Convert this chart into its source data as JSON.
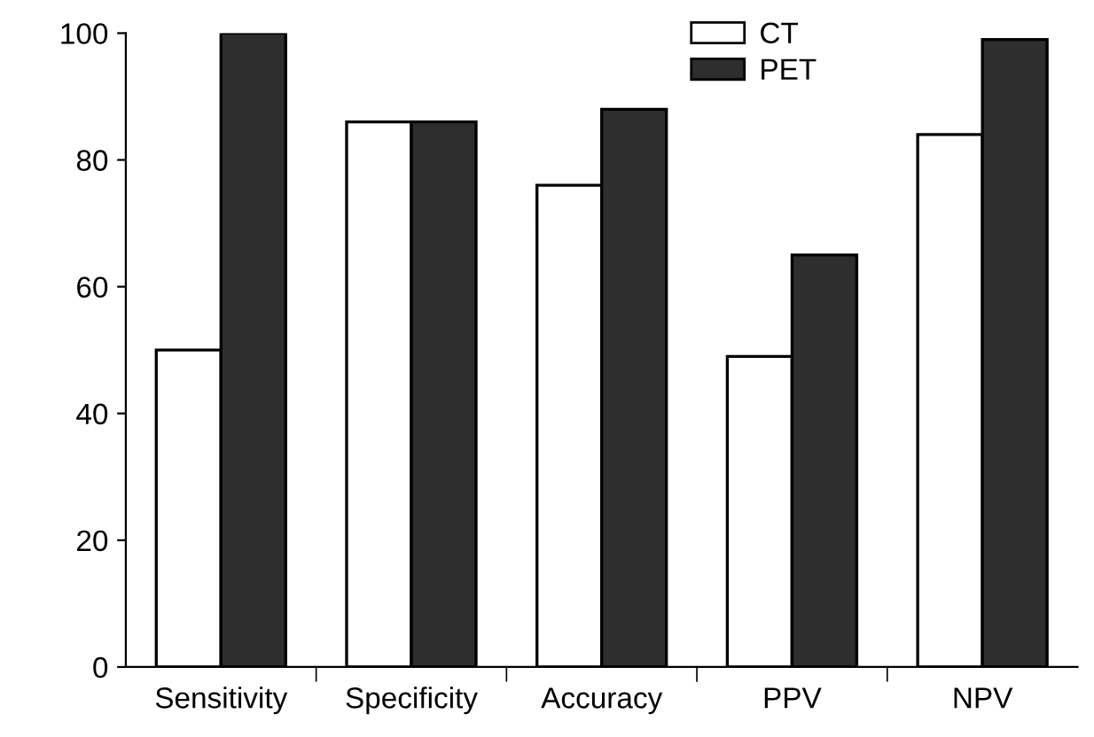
{
  "chart_data": {
    "type": "bar",
    "categories": [
      "Sensitivity",
      "Specificity",
      "Accuracy",
      "PPV",
      "NPV"
    ],
    "series": [
      {
        "name": "CT",
        "color": "#ffffff",
        "values": [
          50,
          86,
          76,
          49,
          84
        ]
      },
      {
        "name": "PET",
        "color": "#2e2e2e",
        "values": [
          100,
          86,
          88,
          65,
          99
        ]
      }
    ],
    "ylim": [
      0,
      100
    ],
    "yticks": [
      0,
      20,
      40,
      60,
      80,
      100
    ],
    "grid": false,
    "legend": "top"
  }
}
